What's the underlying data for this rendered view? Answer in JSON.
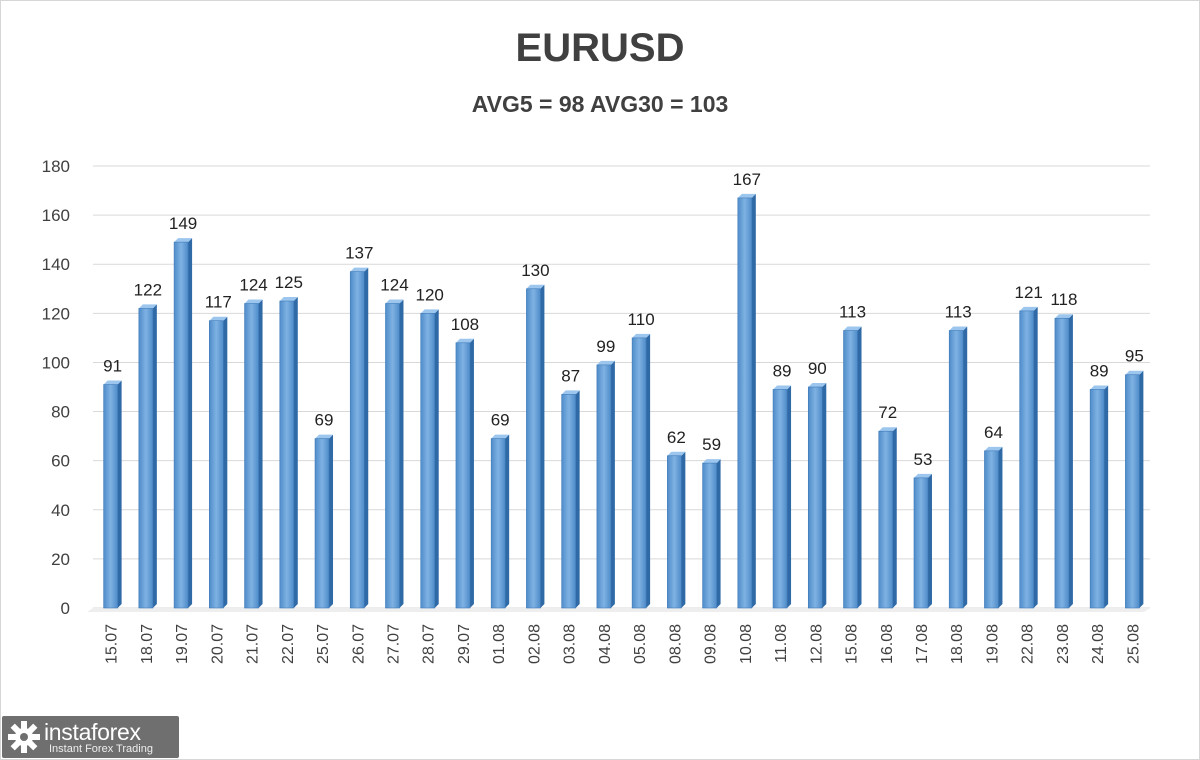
{
  "chart_data": {
    "type": "bar",
    "title": "EURUSD",
    "subtitle": "AVG5 = 98 AVG30 = 103",
    "categories": [
      "15.07",
      "18.07",
      "19.07",
      "20.07",
      "21.07",
      "22.07",
      "25.07",
      "26.07",
      "27.07",
      "28.07",
      "29.07",
      "01.08",
      "02.08",
      "03.08",
      "04.08",
      "05.08",
      "08.08",
      "09.08",
      "10.08",
      "11.08",
      "12.08",
      "15.08",
      "16.08",
      "17.08",
      "18.08",
      "19.08",
      "22.08",
      "23.08",
      "24.08",
      "25.08"
    ],
    "values": [
      91,
      122,
      149,
      117,
      124,
      125,
      69,
      137,
      124,
      120,
      108,
      69,
      130,
      87,
      99,
      110,
      62,
      59,
      167,
      89,
      90,
      113,
      72,
      53,
      113,
      64,
      121,
      118,
      89,
      95
    ],
    "yticks": [
      0,
      20,
      40,
      60,
      80,
      100,
      120,
      140,
      160,
      180
    ],
    "ylim": [
      0,
      180
    ],
    "grid": true,
    "bar_color": "#5b9bd5",
    "legend": "none"
  },
  "logo": {
    "name": "instaforex",
    "tagline": "Instant Forex Trading"
  }
}
